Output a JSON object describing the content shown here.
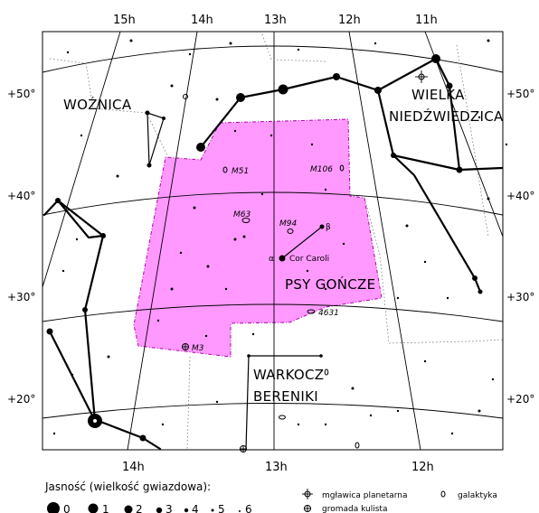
{
  "ra_top": [
    "15h",
    "14h",
    "13h",
    "12h",
    "11h"
  ],
  "ra_bottom": [
    "14h",
    "13h",
    "12h"
  ],
  "dec_left": [
    "+50°",
    "+40°",
    "+30°",
    "+20°"
  ],
  "dec_right": [
    "+50°",
    "+40°",
    "+30°",
    "+20°"
  ],
  "constellations": {
    "woznica": "WOŹNICA",
    "wielka_line1": "WIELKA",
    "wielka_line2": "NIEDŹWIEDZICA",
    "psy": "PSY GOŃCZE",
    "warkocz_line1": "WARKOCZ",
    "warkocz_line2": "BERENIKI"
  },
  "highlight_color": "#ff99ff",
  "objects": {
    "m51": "M51",
    "m106": "M106",
    "m63": "M63",
    "m94": "M94",
    "n4631": "4631",
    "m3": "M3"
  },
  "stars": {
    "alpha": "α",
    "beta": "β",
    "cor_caroli": "Cor Caroli"
  },
  "legend": {
    "title": "Jasność (wielkość gwiazdowa):",
    "magnitudes": [
      "0",
      "1",
      "2",
      "3",
      "4",
      "5",
      "6"
    ],
    "planetary_nebula": "mgławica planetarna",
    "galaxy": "galaktyka",
    "globular_cluster": "gromada kulista"
  }
}
